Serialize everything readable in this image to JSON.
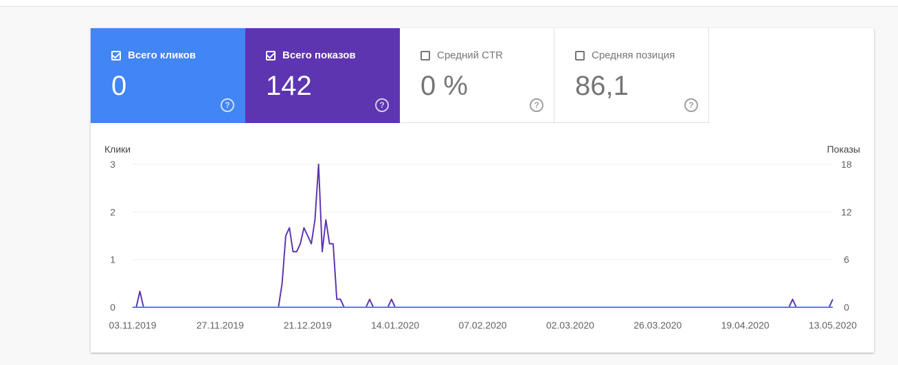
{
  "metrics": {
    "clicks": {
      "label": "Всего кликов",
      "value": "0",
      "checked": true,
      "color": "#4285f4"
    },
    "impressions": {
      "label": "Всего показов",
      "value": "142",
      "checked": true,
      "color": "#5e35b1"
    },
    "ctr": {
      "label": "Средний CTR",
      "value": "0 %",
      "checked": false
    },
    "position": {
      "label": "Средняя позиция",
      "value": "86,1",
      "checked": false
    },
    "help_glyph": "?"
  },
  "chart_data": {
    "type": "line",
    "grid": true,
    "y_left": {
      "label": "Клики",
      "ticks": [
        0,
        1,
        2,
        3
      ],
      "range": [
        0,
        3
      ]
    },
    "y_right": {
      "label": "Показы",
      "ticks": [
        0,
        6,
        12,
        18
      ],
      "range": [
        0,
        18
      ]
    },
    "x_ticks": [
      "03.11.2019",
      "27.11.2019",
      "21.12.2019",
      "14.01.2020",
      "07.02.2020",
      "02.03.2020",
      "26.03.2020",
      "19.04.2020",
      "13.05.2020"
    ],
    "x_range": [
      "03.11.2019",
      "13.05.2020"
    ],
    "series": [
      {
        "name": "Всего кликов",
        "axis": "left",
        "color": "#4285f4",
        "points": [
          [
            "03.11.2019",
            0
          ],
          [
            "13.05.2020",
            0
          ]
        ]
      },
      {
        "name": "Всего показов",
        "axis": "right",
        "color": "#5e35b1",
        "points": [
          [
            "03.11.2019",
            0
          ],
          [
            "04.11.2019",
            0
          ],
          [
            "05.11.2019",
            2
          ],
          [
            "06.11.2019",
            0
          ],
          [
            "13.12.2019",
            0
          ],
          [
            "14.12.2019",
            3
          ],
          [
            "15.12.2019",
            9
          ],
          [
            "16.12.2019",
            10
          ],
          [
            "17.12.2019",
            7
          ],
          [
            "18.12.2019",
            7
          ],
          [
            "19.12.2019",
            8
          ],
          [
            "20.12.2019",
            10
          ],
          [
            "21.12.2019",
            9
          ],
          [
            "22.12.2019",
            8
          ],
          [
            "23.12.2019",
            11
          ],
          [
            "24.12.2019",
            18
          ],
          [
            "25.12.2019",
            7
          ],
          [
            "26.12.2019",
            11
          ],
          [
            "27.12.2019",
            8
          ],
          [
            "28.12.2019",
            8
          ],
          [
            "29.12.2019",
            1
          ],
          [
            "30.12.2019",
            1
          ],
          [
            "31.12.2019",
            0
          ],
          [
            "06.01.2020",
            0
          ],
          [
            "07.01.2020",
            1
          ],
          [
            "08.01.2020",
            0
          ],
          [
            "12.01.2020",
            0
          ],
          [
            "13.01.2020",
            1
          ],
          [
            "14.01.2020",
            0
          ],
          [
            "01.05.2020",
            0
          ],
          [
            "02.05.2020",
            1
          ],
          [
            "03.05.2020",
            0
          ],
          [
            "12.05.2020",
            0
          ],
          [
            "13.05.2020",
            1
          ]
        ]
      }
    ]
  }
}
